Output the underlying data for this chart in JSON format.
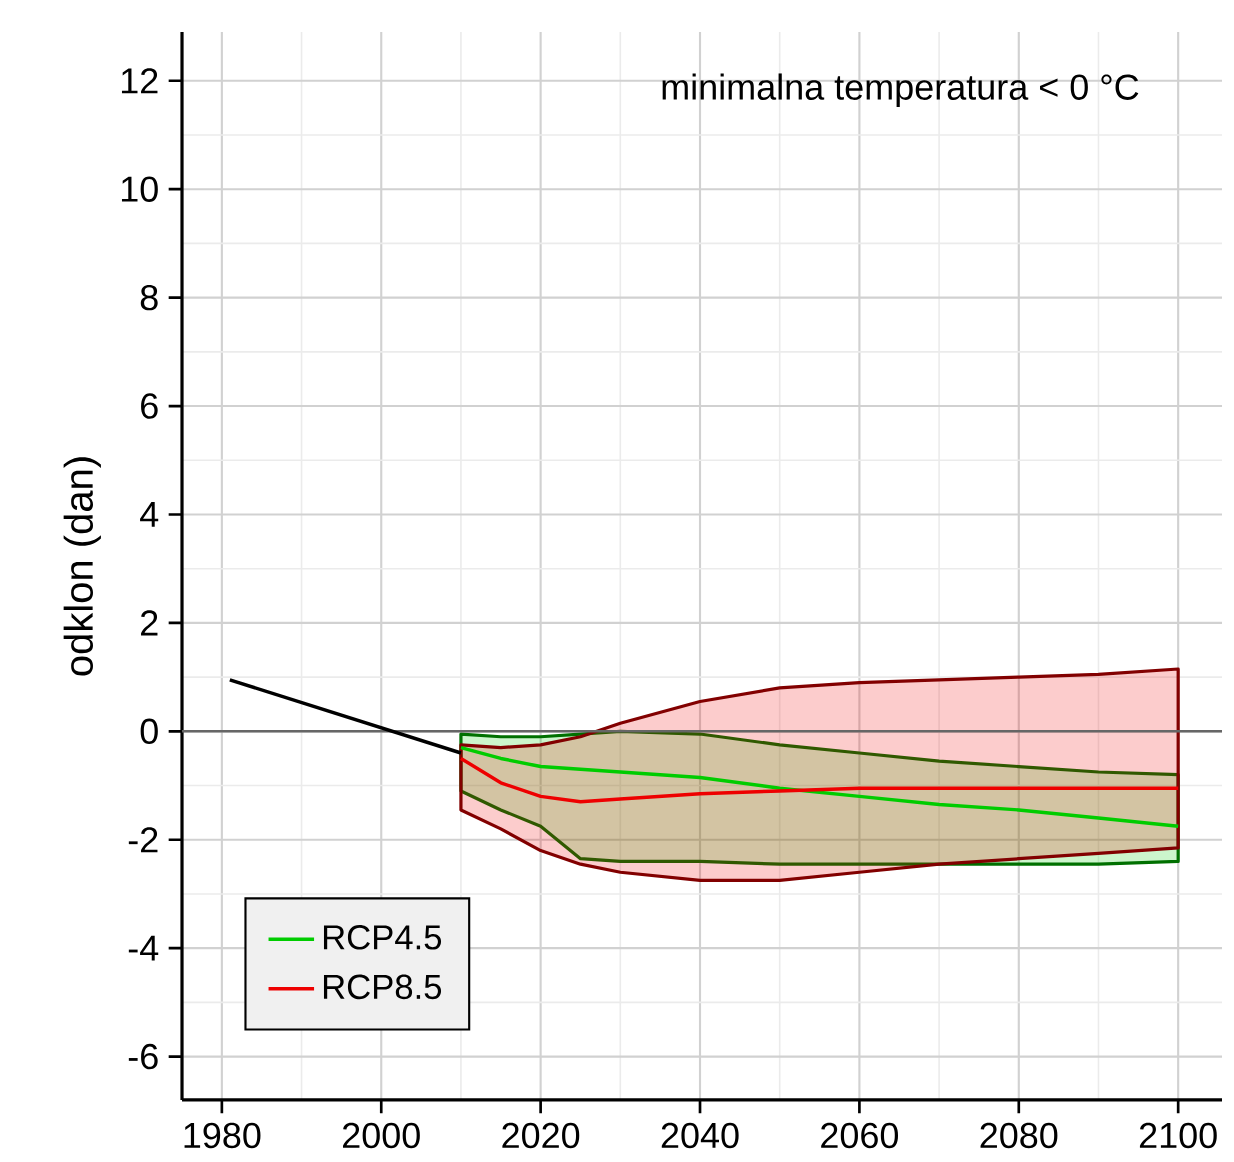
{
  "chart_data": {
    "type": "line",
    "title": "minimalna temperatura < 0 °C",
    "ylabel": "odklon (dan)",
    "xlim": [
      1975,
      2105.5
    ],
    "ylim": [
      -6.8,
      12.9
    ],
    "xticks": [
      1980,
      2000,
      2020,
      2040,
      2060,
      2080,
      2100
    ],
    "yticks": [
      -6,
      -4,
      -2,
      0,
      2,
      4,
      6,
      8,
      10,
      12
    ],
    "grid": true,
    "legend": "bottom left",
    "ref_lines": [
      {
        "axis": "y",
        "value": 0,
        "color": "#666666"
      }
    ],
    "series": [
      {
        "color": "#000000",
        "x": [
          1981,
          2010
        ],
        "values": [
          0.95,
          -0.4
        ]
      },
      {
        "name": "RCP4.5",
        "color": "#00cc00",
        "x": [
          2010,
          2015,
          2020,
          2025,
          2030,
          2040,
          2050,
          2060,
          2070,
          2080,
          2090,
          2100
        ],
        "values": [
          -0.3,
          -0.5,
          -0.65,
          -0.7,
          -0.75,
          -0.85,
          -1.05,
          -1.2,
          -1.35,
          -1.45,
          -1.6,
          -1.75
        ],
        "lower": [
          -1.1,
          -1.45,
          -1.75,
          -2.35,
          -2.4,
          -2.4,
          -2.45,
          -2.45,
          -2.45,
          -2.45,
          -2.45,
          -2.4
        ],
        "upper": [
          -0.05,
          -0.1,
          -0.1,
          -0.05,
          0,
          -0.05,
          -0.25,
          -0.4,
          -0.55,
          -0.65,
          -0.75,
          -0.8
        ]
      },
      {
        "name": "RCP8.5",
        "color": "#ee0000",
        "x": [
          2010,
          2015,
          2020,
          2025,
          2030,
          2040,
          2050,
          2060,
          2070,
          2080,
          2090,
          2100
        ],
        "values": [
          -0.5,
          -0.95,
          -1.2,
          -1.3,
          -1.25,
          -1.15,
          -1.1,
          -1.05,
          -1.05,
          -1.05,
          -1.05,
          -1.05
        ],
        "lower": [
          -1.45,
          -1.8,
          -2.2,
          -2.45,
          -2.6,
          -2.75,
          -2.75,
          -2.6,
          -2.45,
          -2.35,
          -2.25,
          -2.15
        ],
        "upper": [
          -0.25,
          -0.3,
          -0.25,
          -0.1,
          0.15,
          0.55,
          0.8,
          0.9,
          0.95,
          1.0,
          1.05,
          1.15
        ]
      }
    ]
  }
}
